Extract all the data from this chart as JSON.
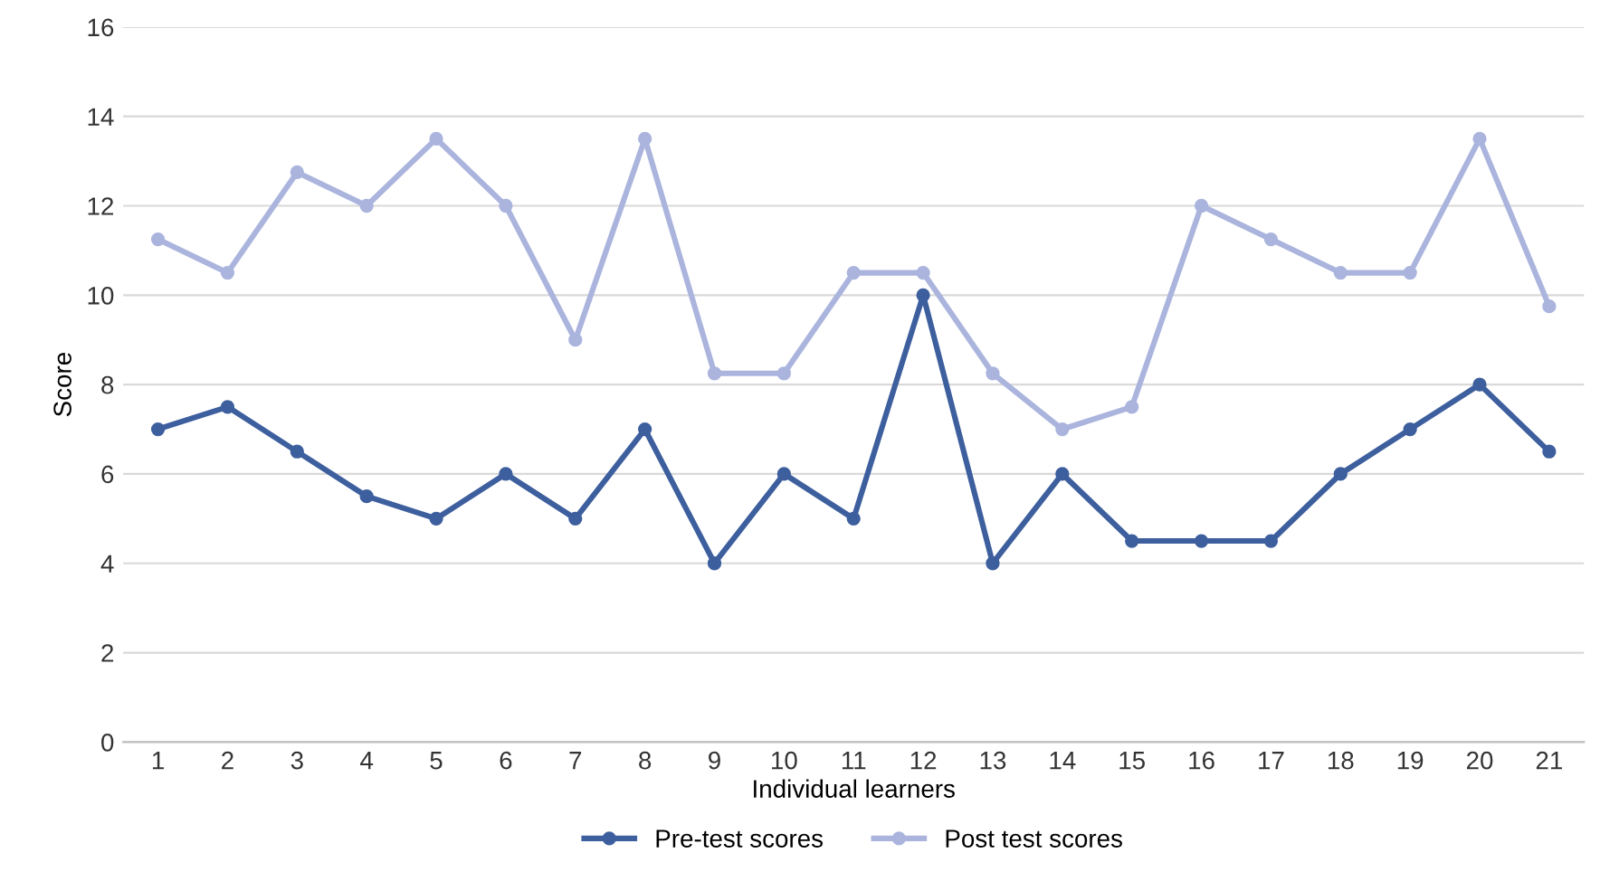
{
  "chart_data": {
    "type": "line",
    "xlabel": "Individual learners",
    "ylabel": "Score",
    "categories": [
      "1",
      "2",
      "3",
      "4",
      "5",
      "6",
      "7",
      "8",
      "9",
      "10",
      "11",
      "12",
      "13",
      "14",
      "15",
      "16",
      "17",
      "18",
      "19",
      "20",
      "21"
    ],
    "series": [
      {
        "name": "Pre-test scores",
        "color": "#3d5f9e",
        "values": [
          7,
          7.5,
          6.5,
          5.5,
          5,
          6,
          5,
          7,
          4,
          6,
          5,
          10,
          4,
          6,
          4.5,
          4.5,
          4.5,
          6,
          7,
          8,
          6.5
        ]
      },
      {
        "name": "Post test scores",
        "color": "#aab4dd",
        "values": [
          11.25,
          10.5,
          12.75,
          12,
          13.5,
          12,
          9,
          13.5,
          8.25,
          8.25,
          10.5,
          10.5,
          8.25,
          7,
          7.5,
          12,
          11.25,
          10.5,
          10.5,
          13.5,
          9.75
        ]
      }
    ],
    "ylim": [
      0,
      16
    ],
    "yticks": [
      0,
      2,
      4,
      6,
      8,
      10,
      12,
      14,
      16
    ],
    "grid": "y",
    "legend": "bottom",
    "marker": "circle",
    "line_style": "solid"
  }
}
